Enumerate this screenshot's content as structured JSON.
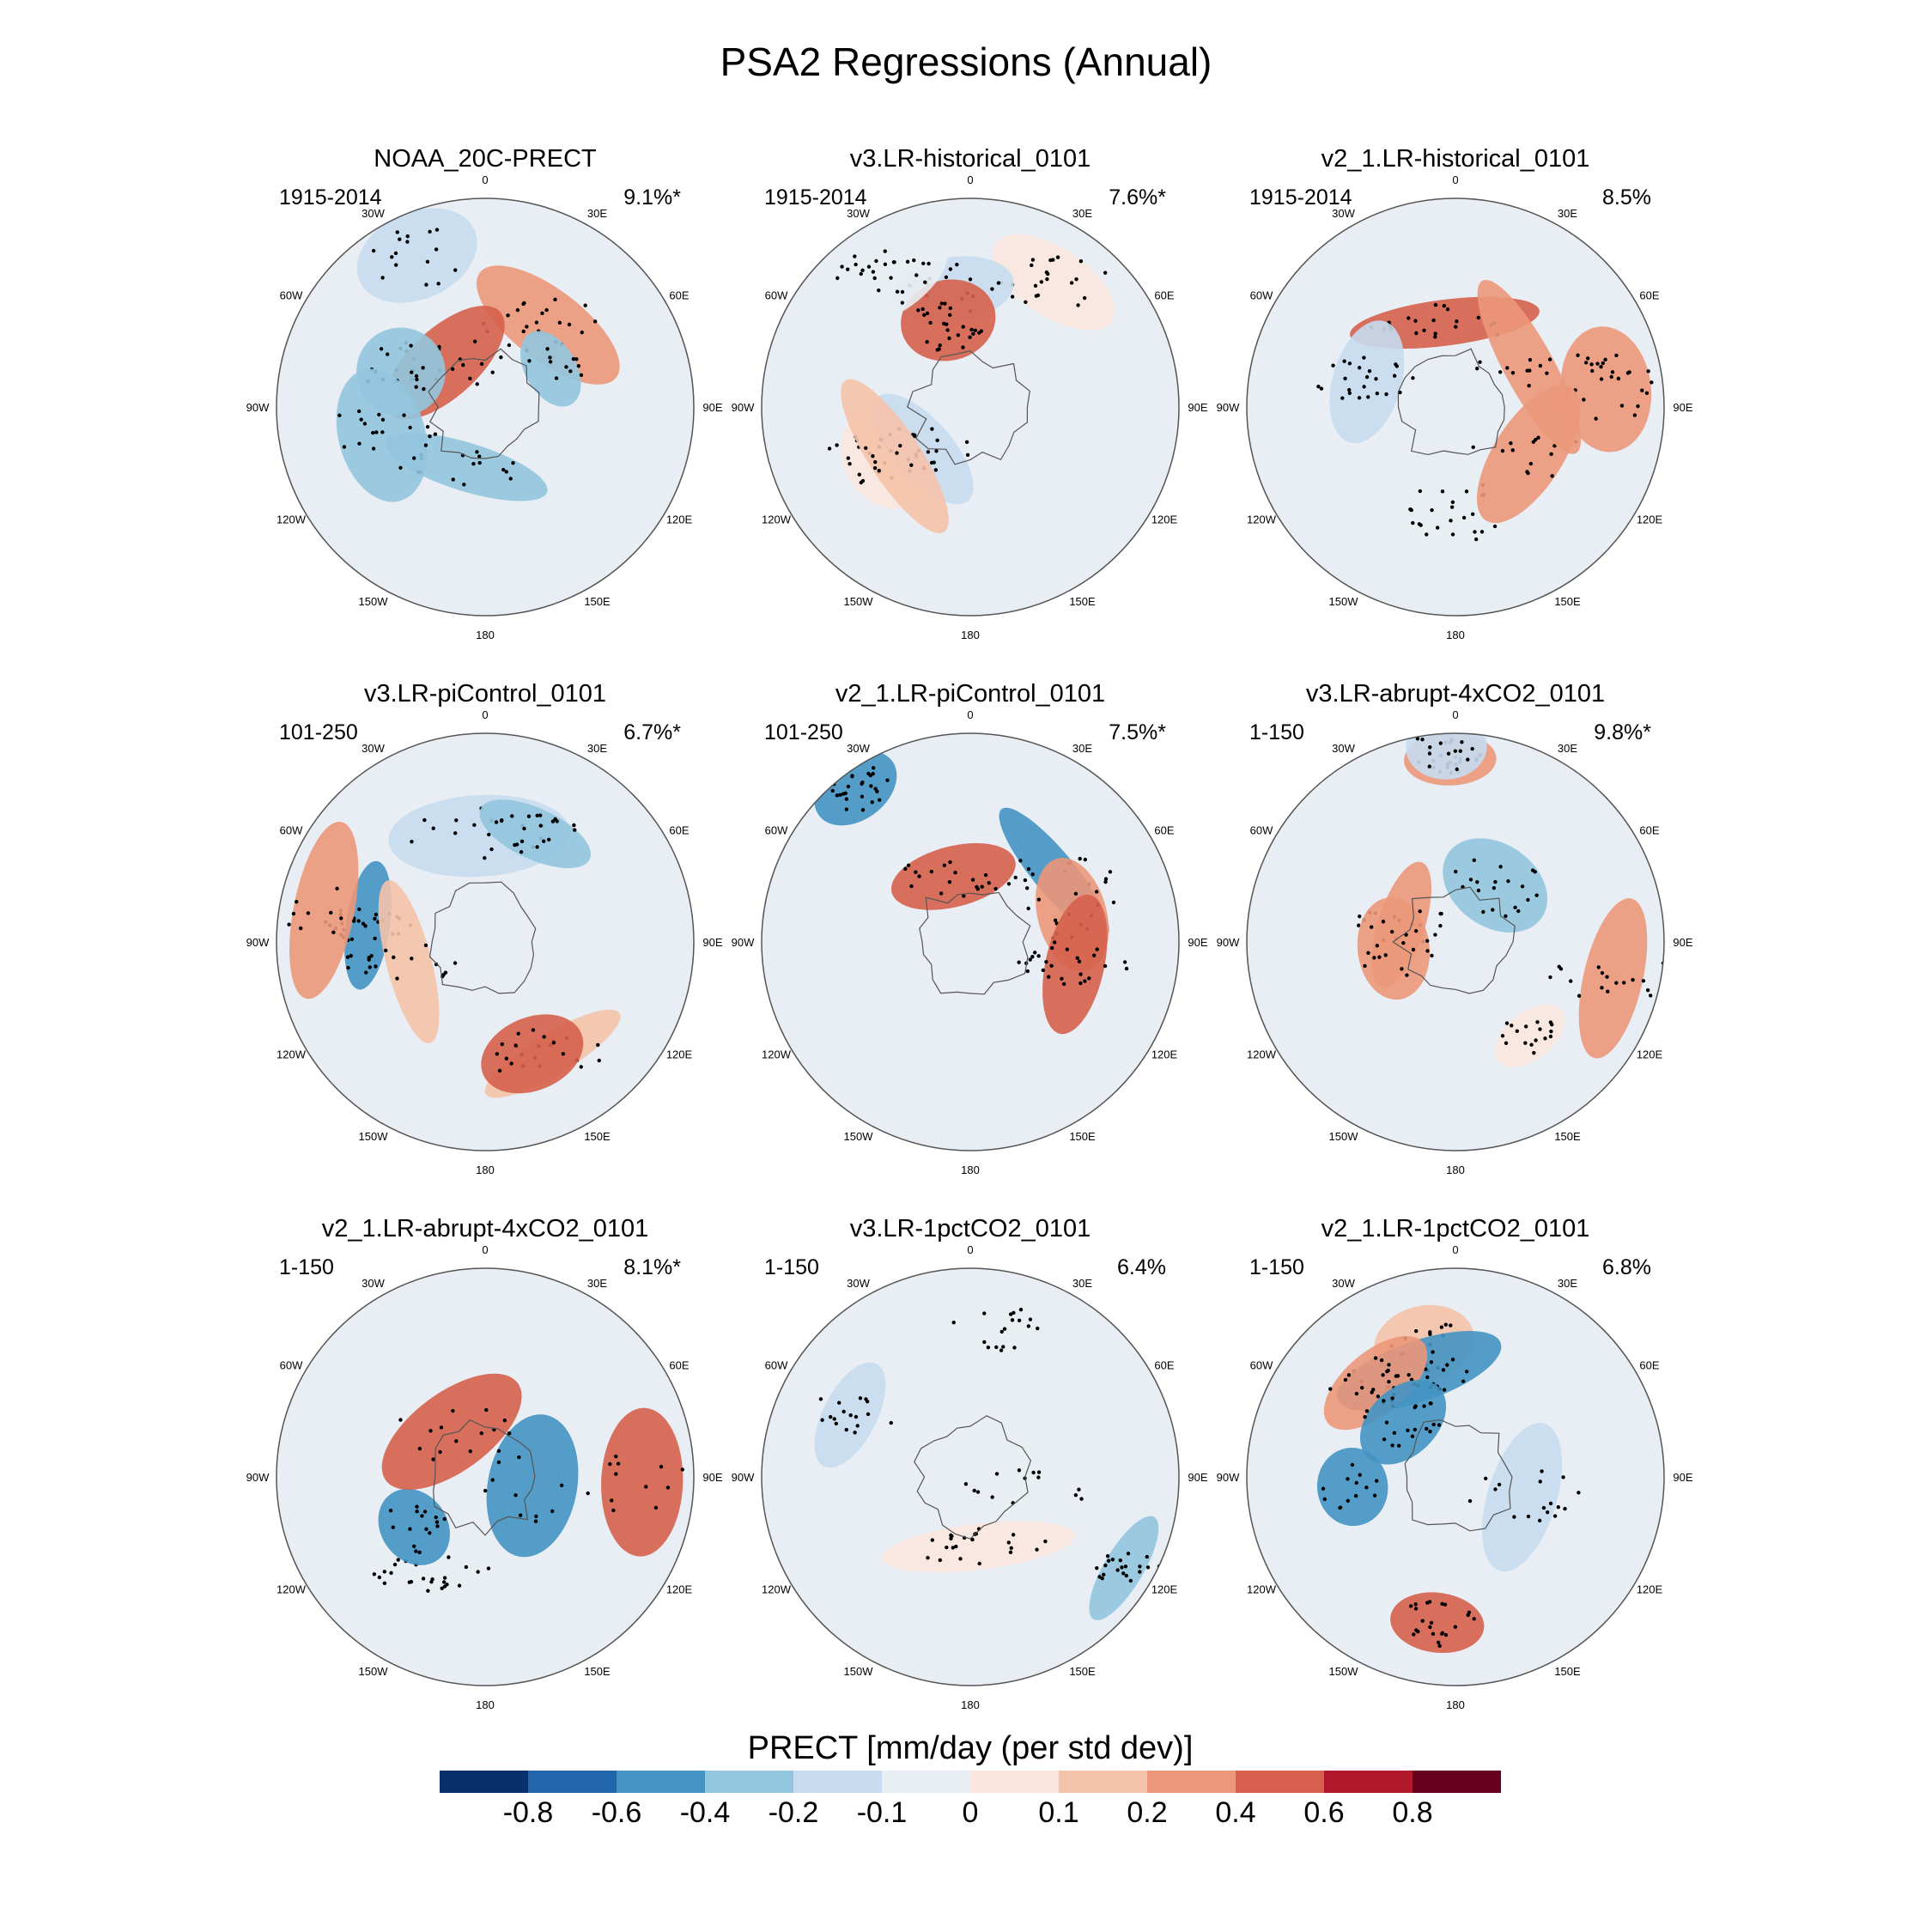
{
  "figure_title": "PSA2 Regressions (Annual)",
  "chart_data": {
    "type": "heatmap",
    "projection": "south polar stereographic",
    "variable": "PRECT",
    "units_label": "PRECT [mm/day (per std dev)]",
    "longitude_labels": [
      "0",
      "30E",
      "60E",
      "90E",
      "120E",
      "150E",
      "180",
      "150W",
      "120W",
      "90W",
      "60W",
      "30W"
    ],
    "colorbar": {
      "levels": [
        "-0.8",
        "-0.6",
        "-0.4",
        "-0.2",
        "-0.1",
        "0",
        "0.1",
        "0.2",
        "0.4",
        "0.6",
        "0.8"
      ],
      "colors": [
        "#08306b",
        "#2166ac",
        "#4393c3",
        "#92c5de",
        "#c6dbef",
        "#e8eef3",
        "#fbe6df",
        "#f5c2aa",
        "#ec9779",
        "#d6604d",
        "#b2182b",
        "#67001f"
      ]
    },
    "panels": [
      {
        "title": "NOAA_20C-PRECT",
        "years": "1915-2014",
        "variance": "9.1%*",
        "seed": 11
      },
      {
        "title": "v3.LR-historical_0101",
        "years": "1915-2014",
        "variance": "7.6%*",
        "seed": 23
      },
      {
        "title": "v2_1.LR-historical_0101",
        "years": "1915-2014",
        "variance": "8.5%",
        "seed": 37
      },
      {
        "title": "v3.LR-piControl_0101",
        "years": "101-250",
        "variance": "6.7%*",
        "seed": 41
      },
      {
        "title": "v2_1.LR-piControl_0101",
        "years": "101-250",
        "variance": "7.5%*",
        "seed": 53
      },
      {
        "title": "v3.LR-abrupt-4xCO2_0101",
        "years": "1-150",
        "variance": "9.8%*",
        "seed": 67
      },
      {
        "title": "v2_1.LR-abrupt-4xCO2_0101",
        "years": "1-150",
        "variance": "8.1%*",
        "seed": 71
      },
      {
        "title": "v3.LR-1pctCO2_0101",
        "years": "1-150",
        "variance": "6.4%",
        "seed": 83
      },
      {
        "title": "v2_1.LR-1pctCO2_0101",
        "years": "1-150",
        "variance": "6.8%",
        "seed": 97
      }
    ]
  }
}
